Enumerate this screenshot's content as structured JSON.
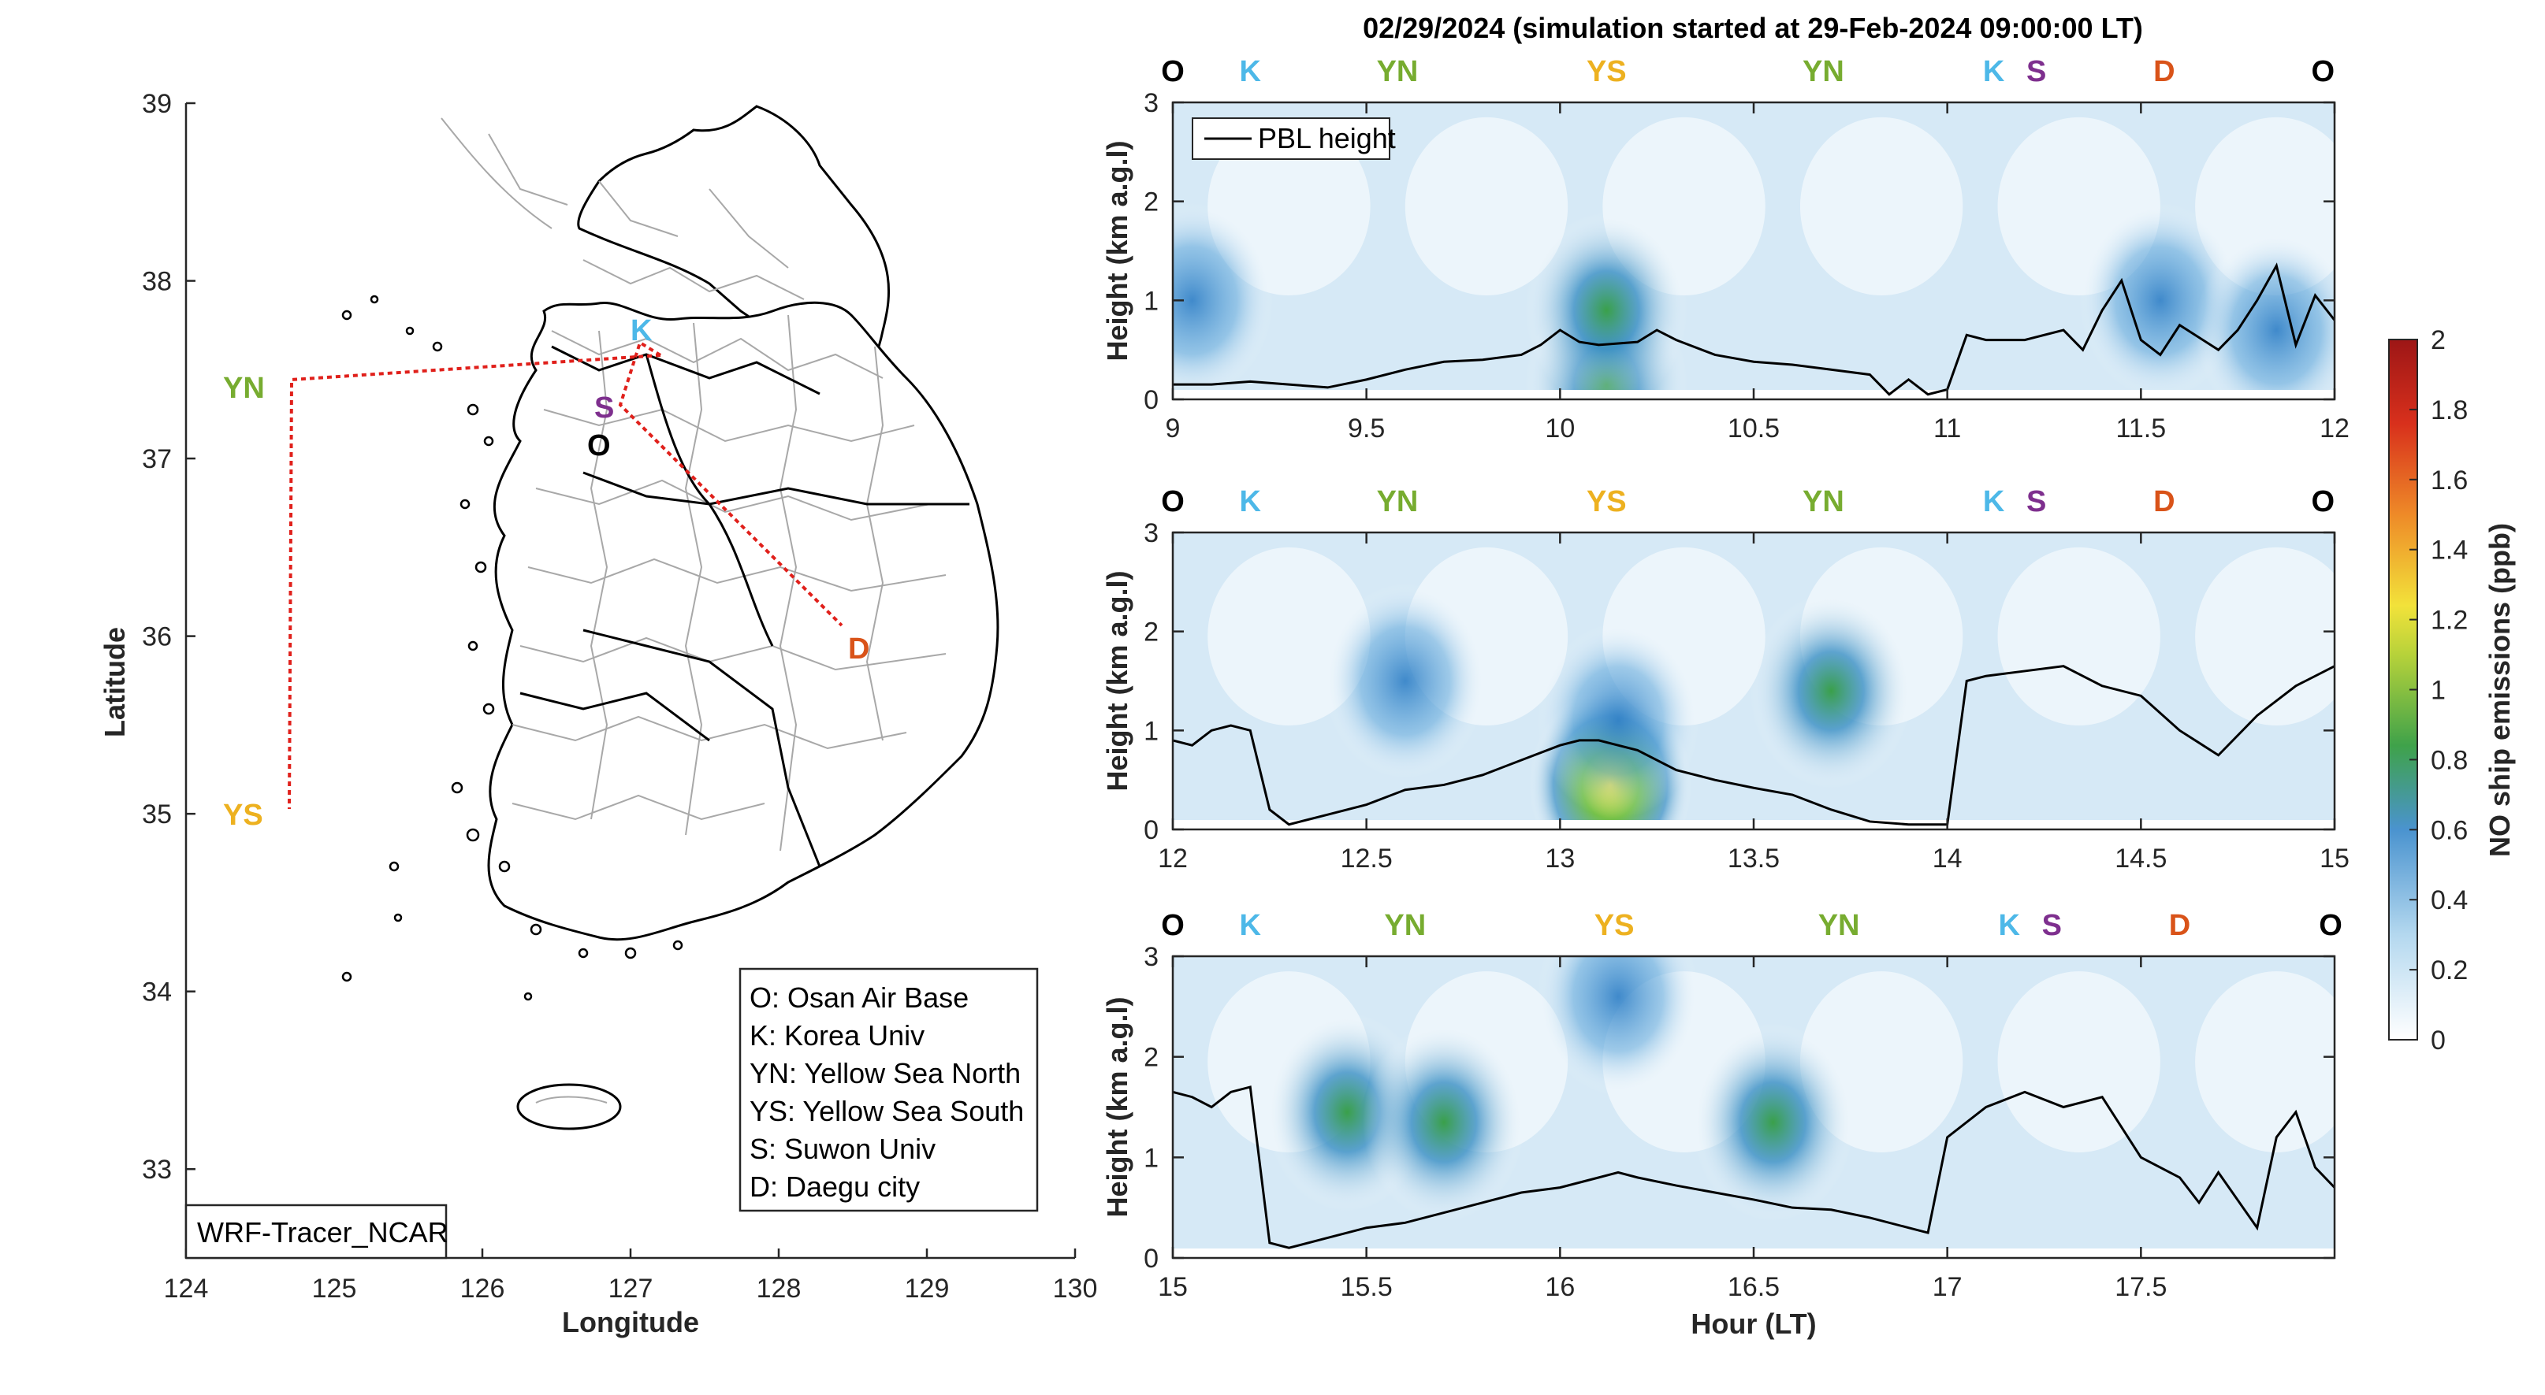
{
  "title": "02/29/2024 (simulation started at 29-Feb-2024 09:00:00 LT)",
  "colors": {
    "O": "#000000",
    "K": "#4db8e8",
    "YN": "#77ac30",
    "YS": "#edb120",
    "S": "#7e2f8e",
    "D": "#d95319",
    "route": "#e0201b",
    "pbl": "#000000"
  },
  "map": {
    "xlabel": "Longitude",
    "ylabel": "Latitude",
    "xticks": [
      "124",
      "125",
      "126",
      "127",
      "128",
      "129",
      "130"
    ],
    "yticks": [
      "39",
      "38",
      "37",
      "36",
      "35",
      "34",
      "33"
    ],
    "xlim": [
      124,
      130
    ],
    "ylim": [
      32.5,
      39
    ],
    "model_label": "WRF-Tracer_NCAR",
    "legend": [
      "O: Osan Air Base",
      "K: Korea Univ",
      "YN: Yellow Sea North",
      "YS: Yellow Sea South",
      "S: Suwon Univ",
      "D: Daegu city"
    ],
    "sites": [
      {
        "code": "O",
        "lon": 127.03,
        "lat": 37.09
      },
      {
        "code": "K",
        "lon": 127.03,
        "lat": 37.59
      },
      {
        "code": "S",
        "lon": 126.97,
        "lat": 37.3
      },
      {
        "code": "D",
        "lon": 128.6,
        "lat": 35.87
      },
      {
        "code": "YN",
        "lon": 124.7,
        "lat": 37.45
      },
      {
        "code": "YS",
        "lon": 124.7,
        "lat": 35.05
      }
    ]
  },
  "colorbar": {
    "label": "NO ship emissions (ppb)",
    "ticks": [
      "2",
      "1.8",
      "1.6",
      "1.4",
      "1.2",
      "1",
      "0.8",
      "0.6",
      "0.4",
      "0.2",
      "0"
    ],
    "range": [
      0,
      2
    ]
  },
  "chart_data": [
    {
      "type": "heatmap",
      "xlabel": "",
      "ylabel": "Height (km a.g.l)",
      "xlim": [
        9,
        12
      ],
      "ylim": [
        0,
        3
      ],
      "xticks": [
        "9",
        "9.5",
        "10",
        "10.5",
        "11",
        "11.5",
        "12"
      ],
      "yticks": [
        "3",
        "2",
        "1",
        "0"
      ],
      "legend": "PBL height",
      "legend_placement": "top-left",
      "sites_top": [
        {
          "label": "O",
          "x": 9.0
        },
        {
          "label": "K",
          "x": 9.2
        },
        {
          "label": "YN",
          "x": 9.58
        },
        {
          "label": "YS",
          "x": 10.12
        },
        {
          "label": "YN",
          "x": 10.68
        },
        {
          "label": "K",
          "x": 11.12
        },
        {
          "label": "S",
          "x": 11.23
        },
        {
          "label": "D",
          "x": 11.56
        },
        {
          "label": "O",
          "x": 11.97
        }
      ],
      "pbl_height": {
        "x": [
          9.0,
          9.1,
          9.2,
          9.3,
          9.4,
          9.5,
          9.6,
          9.7,
          9.8,
          9.9,
          9.95,
          10.0,
          10.05,
          10.1,
          10.2,
          10.25,
          10.3,
          10.4,
          10.5,
          10.6,
          10.7,
          10.8,
          10.85,
          10.9,
          10.95,
          11.0,
          11.05,
          11.1,
          11.2,
          11.3,
          11.35,
          11.4,
          11.45,
          11.5,
          11.55,
          11.6,
          11.7,
          11.75,
          11.8,
          11.85,
          11.9,
          11.95,
          12.0
        ],
        "y": [
          0.15,
          0.15,
          0.18,
          0.15,
          0.12,
          0.2,
          0.3,
          0.38,
          0.4,
          0.45,
          0.55,
          0.7,
          0.58,
          0.55,
          0.58,
          0.7,
          0.6,
          0.45,
          0.38,
          0.35,
          0.3,
          0.25,
          0.05,
          0.2,
          0.05,
          0.1,
          0.65,
          0.6,
          0.6,
          0.7,
          0.5,
          0.9,
          1.2,
          0.6,
          0.45,
          0.75,
          0.5,
          0.7,
          1.0,
          1.35,
          0.55,
          1.05,
          0.8
        ]
      },
      "emission_hotspots": [
        {
          "x": 10.12,
          "y": 0.15,
          "value": 0.95
        },
        {
          "x": 10.12,
          "y": 0.9,
          "value": 0.7
        },
        {
          "x": 9.05,
          "y": 1.0,
          "value": 0.45
        },
        {
          "x": 11.55,
          "y": 1.0,
          "value": 0.5
        },
        {
          "x": 11.85,
          "y": 0.7,
          "value": 0.4
        }
      ]
    },
    {
      "type": "heatmap",
      "xlabel": "",
      "ylabel": "Height (km a.g.l)",
      "xlim": [
        12,
        15
      ],
      "ylim": [
        0,
        3
      ],
      "xticks": [
        "12",
        "12.5",
        "13",
        "13.5",
        "14",
        "14.5",
        "15"
      ],
      "yticks": [
        "3",
        "2",
        "1",
        "0"
      ],
      "sites_top": [
        {
          "label": "O",
          "x": 12.0
        },
        {
          "label": "K",
          "x": 12.2
        },
        {
          "label": "YN",
          "x": 12.58
        },
        {
          "label": "YS",
          "x": 13.12
        },
        {
          "label": "YN",
          "x": 13.68
        },
        {
          "label": "K",
          "x": 14.12
        },
        {
          "label": "S",
          "x": 14.23
        },
        {
          "label": "D",
          "x": 14.56
        },
        {
          "label": "O",
          "x": 14.97
        }
      ],
      "pbl_height": {
        "x": [
          12.0,
          12.05,
          12.1,
          12.15,
          12.2,
          12.25,
          12.3,
          12.4,
          12.5,
          12.6,
          12.7,
          12.8,
          12.9,
          13.0,
          13.05,
          13.1,
          13.15,
          13.2,
          13.3,
          13.4,
          13.5,
          13.6,
          13.7,
          13.8,
          13.9,
          14.0,
          14.05,
          14.1,
          14.2,
          14.3,
          14.4,
          14.5,
          14.6,
          14.7,
          14.75,
          14.8,
          14.9,
          15.0
        ],
        "y": [
          0.9,
          0.85,
          1.0,
          1.05,
          1.0,
          0.2,
          0.05,
          0.15,
          0.25,
          0.4,
          0.45,
          0.55,
          0.7,
          0.85,
          0.9,
          0.9,
          0.85,
          0.8,
          0.6,
          0.5,
          0.42,
          0.35,
          0.2,
          0.08,
          0.05,
          0.05,
          1.5,
          1.55,
          1.6,
          1.65,
          1.45,
          1.35,
          1.0,
          0.75,
          0.95,
          1.15,
          1.45,
          1.65
        ]
      },
      "emission_hotspots": [
        {
          "x": 13.13,
          "y": 0.45,
          "value": 1.2
        },
        {
          "x": 13.15,
          "y": 1.1,
          "value": 0.6
        },
        {
          "x": 12.6,
          "y": 1.5,
          "value": 0.5
        },
        {
          "x": 13.7,
          "y": 1.4,
          "value": 0.7
        }
      ]
    },
    {
      "type": "heatmap",
      "xlabel": "Hour (LT)",
      "ylabel": "Height (km a.g.l)",
      "xlim": [
        15,
        18
      ],
      "ylim": [
        0,
        3
      ],
      "xticks": [
        "15",
        "15.5",
        "16",
        "16.5",
        "17",
        "17.5"
      ],
      "yticks": [
        "3",
        "2",
        "1",
        "0"
      ],
      "sites_top": [
        {
          "label": "O",
          "x": 15.0
        },
        {
          "label": "K",
          "x": 15.2
        },
        {
          "label": "YN",
          "x": 15.6
        },
        {
          "label": "YS",
          "x": 16.14
        },
        {
          "label": "YN",
          "x": 16.72
        },
        {
          "label": "K",
          "x": 17.16
        },
        {
          "label": "S",
          "x": 17.27
        },
        {
          "label": "D",
          "x": 17.6
        },
        {
          "label": "O",
          "x": 17.99
        }
      ],
      "pbl_height": {
        "x": [
          15.0,
          15.05,
          15.1,
          15.15,
          15.2,
          15.25,
          15.3,
          15.4,
          15.5,
          15.6,
          15.7,
          15.8,
          15.9,
          16.0,
          16.1,
          16.15,
          16.2,
          16.3,
          16.4,
          16.5,
          16.6,
          16.7,
          16.8,
          16.9,
          16.95,
          17.0,
          17.1,
          17.2,
          17.3,
          17.4,
          17.5,
          17.6,
          17.65,
          17.7,
          17.8,
          17.85,
          17.9,
          17.95,
          18.0
        ],
        "y": [
          1.65,
          1.6,
          1.5,
          1.65,
          1.7,
          0.15,
          0.1,
          0.2,
          0.3,
          0.35,
          0.45,
          0.55,
          0.65,
          0.7,
          0.8,
          0.85,
          0.8,
          0.72,
          0.65,
          0.58,
          0.5,
          0.48,
          0.4,
          0.3,
          0.25,
          1.2,
          1.5,
          1.65,
          1.5,
          1.6,
          1.0,
          0.8,
          0.55,
          0.85,
          0.3,
          1.2,
          1.45,
          0.9,
          0.7
        ]
      },
      "emission_hotspots": [
        {
          "x": 15.45,
          "y": 1.45,
          "value": 0.65
        },
        {
          "x": 15.7,
          "y": 1.35,
          "value": 0.75
        },
        {
          "x": 16.55,
          "y": 1.35,
          "value": 0.8
        },
        {
          "x": 16.15,
          "y": 2.6,
          "value": 0.5
        }
      ]
    }
  ]
}
